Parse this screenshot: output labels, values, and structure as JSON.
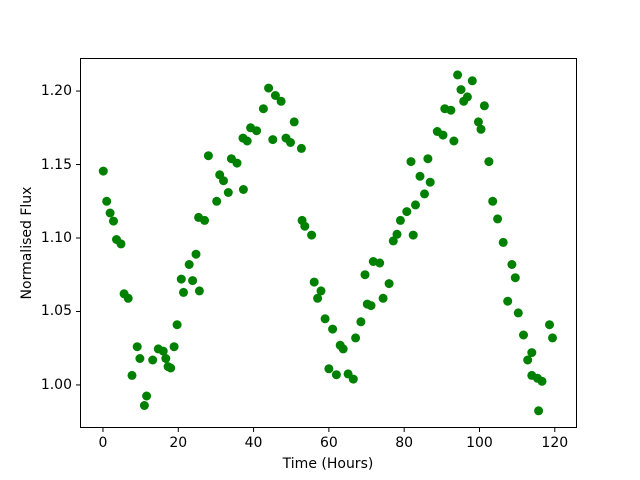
{
  "figure": {
    "background_color": "#ffffff",
    "axes_edge_color": "#000000",
    "text_color": "#000000"
  },
  "chart_data": {
    "type": "scatter",
    "title": "",
    "xlabel": "Time (Hours)",
    "ylabel": "Normalised Flux",
    "legend": null,
    "grid": false,
    "marker_color": "#008000",
    "marker_diameter_px": 9,
    "xlim": [
      -6.1,
      125.9
    ],
    "ylim": [
      0.9707,
      1.2225
    ],
    "x_ticks": [
      {
        "value": 0,
        "label": "0"
      },
      {
        "value": 20,
        "label": "20"
      },
      {
        "value": 40,
        "label": "40"
      },
      {
        "value": 60,
        "label": "60"
      },
      {
        "value": 80,
        "label": "80"
      },
      {
        "value": 100,
        "label": "100"
      },
      {
        "value": 120,
        "label": "120"
      }
    ],
    "y_ticks": [
      {
        "value": 1.0,
        "label": "1.00"
      },
      {
        "value": 1.05,
        "label": "1.05"
      },
      {
        "value": 1.1,
        "label": "1.10"
      },
      {
        "value": 1.15,
        "label": "1.15"
      },
      {
        "value": 1.2,
        "label": "1.20"
      }
    ],
    "points": [
      [
        0.1,
        1.1455
      ],
      [
        1.0,
        1.125
      ],
      [
        1.9,
        1.117
      ],
      [
        2.8,
        1.1115
      ],
      [
        3.6,
        1.099
      ],
      [
        4.8,
        1.096
      ],
      [
        5.6,
        1.062
      ],
      [
        6.7,
        1.059
      ],
      [
        7.7,
        1.0065
      ],
      [
        9.1,
        1.026
      ],
      [
        9.8,
        1.018
      ],
      [
        11.0,
        0.986
      ],
      [
        11.6,
        0.9925
      ],
      [
        13.2,
        1.017
      ],
      [
        14.7,
        1.0245
      ],
      [
        16.0,
        1.023
      ],
      [
        16.7,
        1.018
      ],
      [
        17.3,
        1.0125
      ],
      [
        18.0,
        1.0115
      ],
      [
        18.9,
        1.026
      ],
      [
        19.7,
        1.041
      ],
      [
        20.8,
        1.072
      ],
      [
        21.4,
        1.063
      ],
      [
        22.9,
        1.082
      ],
      [
        23.8,
        1.071
      ],
      [
        24.7,
        1.089
      ],
      [
        25.6,
        1.064
      ],
      [
        25.4,
        1.114
      ],
      [
        27.0,
        1.112
      ],
      [
        28.0,
        1.156
      ],
      [
        30.2,
        1.125
      ],
      [
        31.0,
        1.143
      ],
      [
        32.0,
        1.139
      ],
      [
        33.3,
        1.131
      ],
      [
        34.1,
        1.154
      ],
      [
        35.6,
        1.151
      ],
      [
        37.3,
        1.133
      ],
      [
        37.2,
        1.168
      ],
      [
        38.3,
        1.166
      ],
      [
        39.2,
        1.175
      ],
      [
        40.8,
        1.173
      ],
      [
        42.6,
        1.188
      ],
      [
        44.0,
        1.202
      ],
      [
        45.8,
        1.197
      ],
      [
        47.3,
        1.193
      ],
      [
        45.1,
        1.167
      ],
      [
        48.6,
        1.168
      ],
      [
        49.8,
        1.165
      ],
      [
        50.8,
        1.179
      ],
      [
        52.7,
        1.161
      ],
      [
        52.9,
        1.112
      ],
      [
        53.6,
        1.108
      ],
      [
        55.4,
        1.102
      ],
      [
        56.1,
        1.07
      ],
      [
        57.0,
        1.059
      ],
      [
        57.9,
        1.064
      ],
      [
        59.0,
        1.045
      ],
      [
        60.0,
        1.011
      ],
      [
        61.0,
        1.038
      ],
      [
        62.0,
        1.007
      ],
      [
        63.0,
        1.027
      ],
      [
        63.8,
        1.0245
      ],
      [
        65.1,
        1.0075
      ],
      [
        66.5,
        1.004
      ],
      [
        67.1,
        1.032
      ],
      [
        68.5,
        1.043
      ],
      [
        69.6,
        1.075
      ],
      [
        70.2,
        1.055
      ],
      [
        71.2,
        1.054
      ],
      [
        71.8,
        1.084
      ],
      [
        73.5,
        1.083
      ],
      [
        74.4,
        1.059
      ],
      [
        76.0,
        1.069
      ],
      [
        77.1,
        1.098
      ],
      [
        78.1,
        1.1025
      ],
      [
        79.0,
        1.112
      ],
      [
        80.7,
        1.118
      ],
      [
        81.8,
        1.152
      ],
      [
        82.4,
        1.102
      ],
      [
        83.0,
        1.1225
      ],
      [
        84.2,
        1.142
      ],
      [
        85.4,
        1.13
      ],
      [
        86.3,
        1.154
      ],
      [
        86.9,
        1.138
      ],
      [
        88.8,
        1.1725
      ],
      [
        90.3,
        1.17
      ],
      [
        90.8,
        1.188
      ],
      [
        92.4,
        1.187
      ],
      [
        93.2,
        1.166
      ],
      [
        94.2,
        1.211
      ],
      [
        95.1,
        1.201
      ],
      [
        95.8,
        1.193
      ],
      [
        96.8,
        1.196
      ],
      [
        98.1,
        1.207
      ],
      [
        99.7,
        1.179
      ],
      [
        100.4,
        1.174
      ],
      [
        101.3,
        1.19
      ],
      [
        102.5,
        1.152
      ],
      [
        103.5,
        1.125
      ],
      [
        104.8,
        1.113
      ],
      [
        106.3,
        1.097
      ],
      [
        107.5,
        1.057
      ],
      [
        108.6,
        1.082
      ],
      [
        109.5,
        1.073
      ],
      [
        110.3,
        1.049
      ],
      [
        111.7,
        1.034
      ],
      [
        112.8,
        1.017
      ],
      [
        113.9,
        1.022
      ],
      [
        113.9,
        1.0065
      ],
      [
        115.4,
        1.0045
      ],
      [
        116.6,
        1.0025
      ],
      [
        115.7,
        0.9824
      ],
      [
        118.6,
        1.041
      ],
      [
        119.4,
        1.032
      ]
    ]
  }
}
